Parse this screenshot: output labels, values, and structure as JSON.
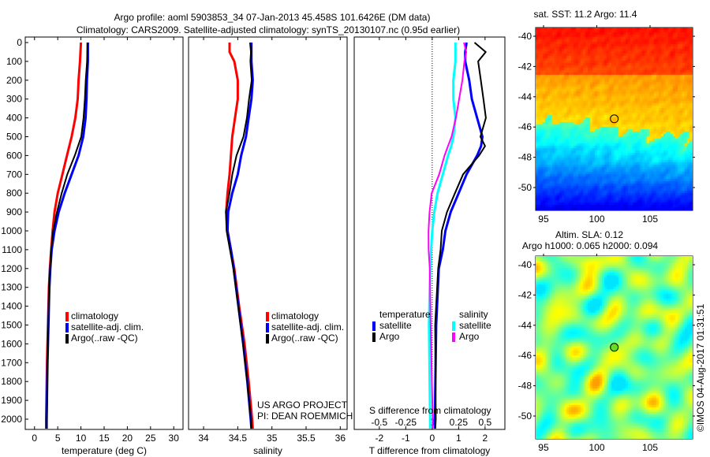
{
  "title": {
    "line1": "Argo profile: aoml 5903853_34 07-Jan-2013 45.458S 101.6426E (DM data)",
    "line2": "Climatology: CARS2009. Satellite-adjusted climatology: synTS_20130107.nc (0.95d earlier)"
  },
  "colors": {
    "climatology": "#ff0000",
    "satellite": "#0000ff",
    "argo": "#000000",
    "sat_salinity": "#00ffff",
    "argo_salinity": "#ff00ff"
  },
  "chart_data": [
    {
      "type": "line",
      "title": "",
      "xlabel": "temperature (deg C)",
      "ylabel": "",
      "xlim": [
        -2,
        32
      ],
      "ylim": [
        2055,
        0
      ],
      "xticks": [
        "0",
        "5",
        "10",
        "15",
        "20",
        "25",
        "30"
      ],
      "yticks": [
        "0",
        "100",
        "200",
        "300",
        "400",
        "500",
        "600",
        "700",
        "800",
        "900",
        "1000",
        "1100",
        "1200",
        "1300",
        "1400",
        "1500",
        "1600",
        "1700",
        "1800",
        "1900",
        "2000"
      ],
      "depth": [
        0,
        100,
        200,
        300,
        400,
        500,
        600,
        700,
        800,
        900,
        1000,
        1100,
        1200,
        1300,
        1500,
        1700,
        2000,
        2050
      ],
      "series": [
        {
          "name": "climatology",
          "color": "#ff0000",
          "values": [
            10.0,
            9.8,
            9.5,
            9.3,
            8.8,
            8.0,
            7.0,
            6.0,
            5.0,
            4.3,
            3.9,
            3.6,
            3.3,
            3.1,
            2.9,
            2.7,
            2.5,
            2.5
          ]
        },
        {
          "name": "satellite-adj. clim.",
          "color": "#0000ff",
          "values": [
            11.5,
            11.5,
            11.3,
            11.2,
            11.0,
            10.5,
            9.5,
            8.0,
            6.5,
            5.2,
            4.3,
            3.7,
            3.4,
            3.2,
            3.0,
            2.8,
            2.6,
            2.6
          ]
        },
        {
          "name": "Argo(..raw -QC)",
          "color": "#000000",
          "values": [
            11.4,
            11.3,
            11.0,
            10.8,
            10.5,
            10.0,
            8.6,
            7.0,
            5.8,
            4.8,
            4.0,
            3.6,
            3.4,
            3.2,
            3.0,
            2.8,
            2.6,
            2.6
          ]
        }
      ],
      "legend": [
        "climatology",
        "satellite-adj. clim.",
        "Argo(..raw -QC)"
      ]
    },
    {
      "type": "line",
      "xlabel": "salinity",
      "xlim": [
        33.78,
        36.1
      ],
      "ylim": [
        2055,
        0
      ],
      "xticks": [
        "34",
        "34.5",
        "35",
        "35.5",
        "36"
      ],
      "depth": [
        0,
        50,
        100,
        200,
        300,
        400,
        500,
        600,
        700,
        800,
        900,
        1000,
        1100,
        1200,
        1400,
        1600,
        1800,
        2000,
        2050
      ],
      "series": [
        {
          "name": "climatology",
          "color": "#ff0000",
          "values": [
            34.38,
            34.38,
            34.45,
            34.5,
            34.5,
            34.46,
            34.42,
            34.4,
            34.38,
            34.35,
            34.33,
            34.35,
            34.4,
            34.45,
            34.52,
            34.6,
            34.66,
            34.71,
            34.72
          ]
        },
        {
          "name": "satellite-adj. clim.",
          "color": "#0000ff",
          "values": [
            34.7,
            34.7,
            34.7,
            34.72,
            34.7,
            34.66,
            34.62,
            34.55,
            34.5,
            34.42,
            34.36,
            34.35,
            34.4,
            34.44,
            34.51,
            34.58,
            34.64,
            34.69,
            34.7
          ]
        },
        {
          "name": "Argo(..raw -QC)",
          "color": "#000000",
          "values": [
            34.68,
            34.69,
            34.68,
            34.7,
            34.66,
            34.63,
            34.58,
            34.48,
            34.42,
            34.38,
            34.33,
            34.34,
            34.39,
            34.44,
            34.51,
            34.58,
            34.64,
            34.69,
            34.7
          ]
        }
      ],
      "legend": [
        "climatology",
        "satellite-adj. clim.",
        "Argo(..raw -QC)"
      ],
      "credit1": "US ARGO PROJECT",
      "credit2": "PI: DEAN ROEMMICH"
    },
    {
      "type": "line",
      "xlabel": "T difference from climatology",
      "xlabel2": "S difference from climatology",
      "xlim": [
        -2.95,
        2.75
      ],
      "ylim": [
        2055,
        0
      ],
      "xticks": [
        "-2",
        "-1",
        "0",
        "1",
        "2"
      ],
      "xticks2": [
        "-0.5",
        "-0.25",
        "0",
        "0.25",
        "0.5"
      ],
      "depth": [
        0,
        50,
        100,
        200,
        300,
        400,
        500,
        550,
        600,
        700,
        800,
        900,
        1000,
        1100,
        1200,
        1500,
        2000,
        2050
      ],
      "series": [
        {
          "name": "temperature satellite",
          "units": "T",
          "color": "#0000ff",
          "values": [
            1.3,
            1.25,
            1.25,
            1.4,
            1.5,
            1.7,
            1.9,
            1.85,
            1.7,
            1.3,
            1.0,
            0.7,
            0.5,
            0.4,
            0.25,
            0.15,
            0.1,
            0.1
          ]
        },
        {
          "name": "temperature Argo",
          "units": "T",
          "color": "#000000",
          "values": [
            1.6,
            2.0,
            1.7,
            1.8,
            1.9,
            2.0,
            1.8,
            2.0,
            1.8,
            1.2,
            0.9,
            0.6,
            0.4,
            0.35,
            0.25,
            0.15,
            0.1,
            0.1
          ]
        },
        {
          "name": "salinity satellite",
          "units": "S",
          "color": "#00ffff",
          "values": [
            0.22,
            0.22,
            0.22,
            0.2,
            0.2,
            0.22,
            0.2,
            0.18,
            0.15,
            0.1,
            0.05,
            0.02,
            0.0,
            -0.01,
            -0.02,
            -0.03,
            -0.02,
            -0.02
          ]
        },
        {
          "name": "salinity Argo",
          "units": "S",
          "color": "#ff00ff",
          "values": [
            0.3,
            0.32,
            0.3,
            0.28,
            0.25,
            0.22,
            0.18,
            0.15,
            0.12,
            0.07,
            0.0,
            -0.02,
            -0.03,
            -0.03,
            -0.02,
            -0.01,
            0.0,
            0.0
          ]
        }
      ],
      "legend_heads": [
        "temperature",
        "salinity"
      ],
      "legend": [
        "satellite",
        "Argo",
        "satellite",
        "Argo"
      ]
    }
  ],
  "maps": [
    {
      "title": "sat. SST: 11.2 Argo: 11.4",
      "xticks": [
        "95",
        "100",
        "105"
      ],
      "yticks": [
        "-40",
        "-42",
        "-44",
        "-46",
        "-48",
        "-50"
      ],
      "marker_lon": 101.6426,
      "marker_lat": -45.458
    },
    {
      "title1": "Altim. SLA: 0.12",
      "title2": "Argo h1000: 0.065 h2000: 0.094",
      "xticks": [
        "95",
        "100",
        "105"
      ],
      "yticks": [
        "-40",
        "-42",
        "-44",
        "-46",
        "-48",
        "-50"
      ],
      "marker_lon": 101.6426,
      "marker_lat": -45.458
    }
  ],
  "footer": "©IMOS 04-Aug-2017 01:31:51"
}
